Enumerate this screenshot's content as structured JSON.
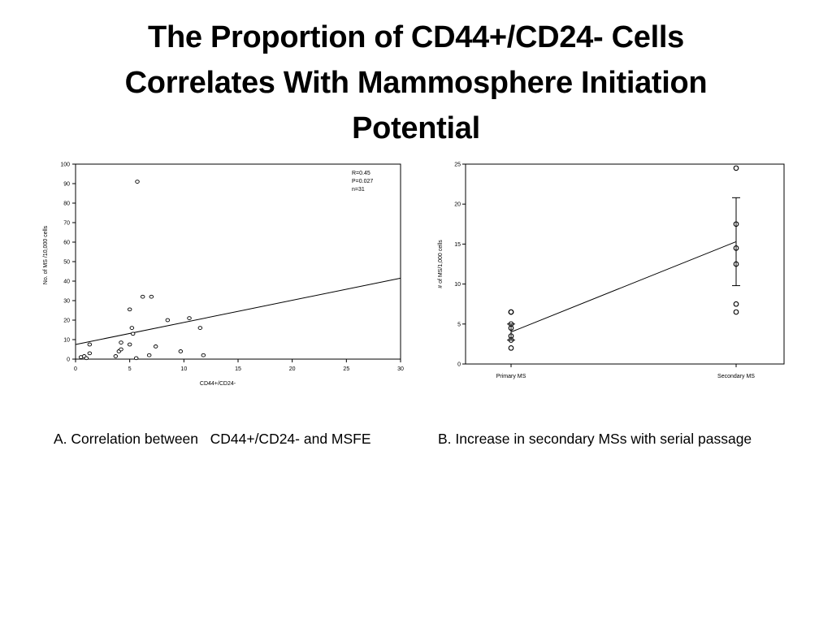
{
  "slide": {
    "title_lines": [
      "The Proportion of CD44+/CD24- Cells",
      "Correlates With Mammosphere Initiation",
      "Potential"
    ]
  },
  "captions": {
    "a": "A. Correlation between   CD44+/CD24- and MSFE",
    "b": "B. Increase in secondary MSs with serial passage"
  },
  "chart_data": [
    {
      "type": "scatter",
      "title": "",
      "xlabel": "CD44+/CD24-",
      "ylabel": "No. of MS /10,000 cells",
      "xlim": [
        0,
        30
      ],
      "ylim": [
        0,
        100
      ],
      "x_ticks": [
        0,
        5,
        10,
        15,
        20,
        25,
        30
      ],
      "y_ticks": [
        0,
        10,
        20,
        30,
        40,
        50,
        60,
        70,
        80,
        90,
        100
      ],
      "grid": false,
      "annotation": [
        "R=0.45",
        "P=0.027",
        "n=31"
      ],
      "marker": "open-circle",
      "points": [
        {
          "x": 0.5,
          "y": 1
        },
        {
          "x": 0.8,
          "y": 1.5
        },
        {
          "x": 1.0,
          "y": 0.5
        },
        {
          "x": 1.3,
          "y": 3
        },
        {
          "x": 1.3,
          "y": 7.5
        },
        {
          "x": 3.7,
          "y": 1.5
        },
        {
          "x": 4.0,
          "y": 4
        },
        {
          "x": 4.2,
          "y": 5
        },
        {
          "x": 4.2,
          "y": 8.5
        },
        {
          "x": 5.0,
          "y": 25.5
        },
        {
          "x": 5.0,
          "y": 7.5
        },
        {
          "x": 5.2,
          "y": 16
        },
        {
          "x": 5.3,
          "y": 13
        },
        {
          "x": 5.6,
          "y": 0.5
        },
        {
          "x": 5.7,
          "y": 91
        },
        {
          "x": 6.2,
          "y": 32
        },
        {
          "x": 6.8,
          "y": 2
        },
        {
          "x": 7.0,
          "y": 32
        },
        {
          "x": 7.4,
          "y": 6.5
        },
        {
          "x": 8.5,
          "y": 20
        },
        {
          "x": 9.7,
          "y": 4
        },
        {
          "x": 10.5,
          "y": 21
        },
        {
          "x": 11.5,
          "y": 16
        },
        {
          "x": 11.8,
          "y": 2
        }
      ],
      "trendline": {
        "x": [
          0,
          30
        ],
        "y": [
          7.5,
          41.5
        ]
      }
    },
    {
      "type": "scatter",
      "title": "",
      "xlabel": "",
      "ylabel": "# of MS/1,000 cells",
      "categories": [
        "Primary MS",
        "Secondary MS"
      ],
      "ylim": [
        0,
        25
      ],
      "y_ticks": [
        0,
        5,
        10,
        15,
        20,
        25
      ],
      "grid": false,
      "marker": "open-circle",
      "points": [
        {
          "category": "Primary MS",
          "values": [
            6.5,
            6.5,
            5.0,
            4.5,
            3.5,
            3.0,
            2.0
          ]
        },
        {
          "category": "Secondary MS",
          "values": [
            24.5,
            17.5,
            14.5,
            12.5,
            7.5,
            6.5
          ]
        }
      ],
      "means": [
        4.0,
        15.3
      ],
      "error_bars": [
        {
          "category": "Primary MS",
          "low": 3.0,
          "high": 5.0
        },
        {
          "category": "Secondary MS",
          "low": 9.8,
          "high": 20.8
        }
      ]
    }
  ]
}
